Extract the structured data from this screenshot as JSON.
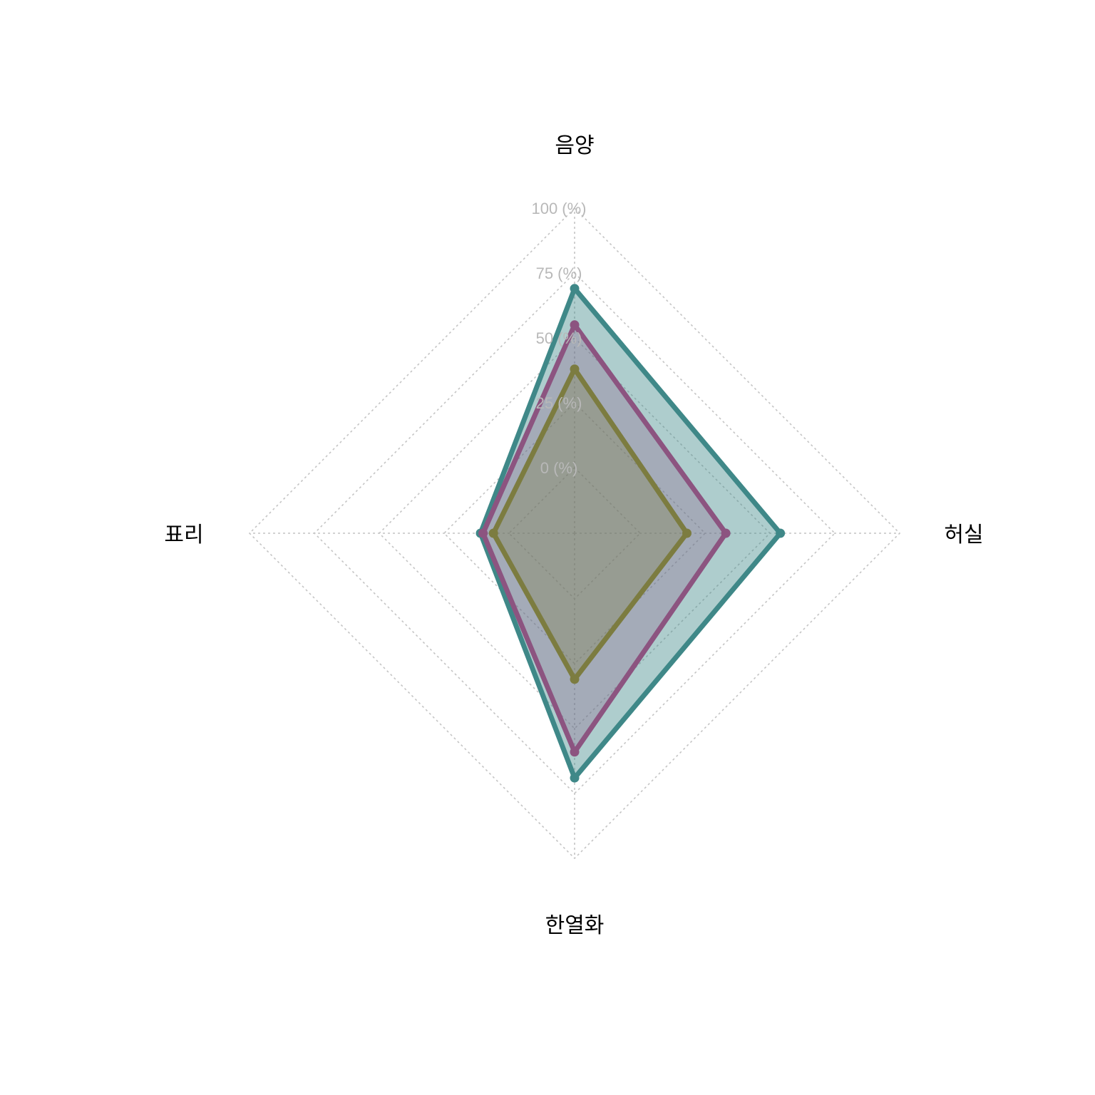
{
  "chart_data": {
    "type": "radar",
    "axes": [
      "음양",
      "허실",
      "한열화",
      "표리"
    ],
    "rings": [
      0,
      25,
      50,
      75,
      100
    ],
    "ring_labels": [
      "0 (%)",
      "25 (%)",
      "50 (%)",
      "75 (%)",
      "100 (%)"
    ],
    "range": [
      0,
      100
    ],
    "grid": true,
    "legend": "none",
    "series": [
      {
        "values": [
          69,
          54,
          69,
          11
        ],
        "color": "#3f8888",
        "fill_opacity": 0.42
      },
      {
        "values": [
          55,
          33,
          59,
          10
        ],
        "color": "#8c5480",
        "fill_opacity": 0.28
      },
      {
        "values": [
          38,
          18,
          31,
          6
        ],
        "color": "#7c7c40",
        "fill_opacity": 0.32
      }
    ]
  }
}
